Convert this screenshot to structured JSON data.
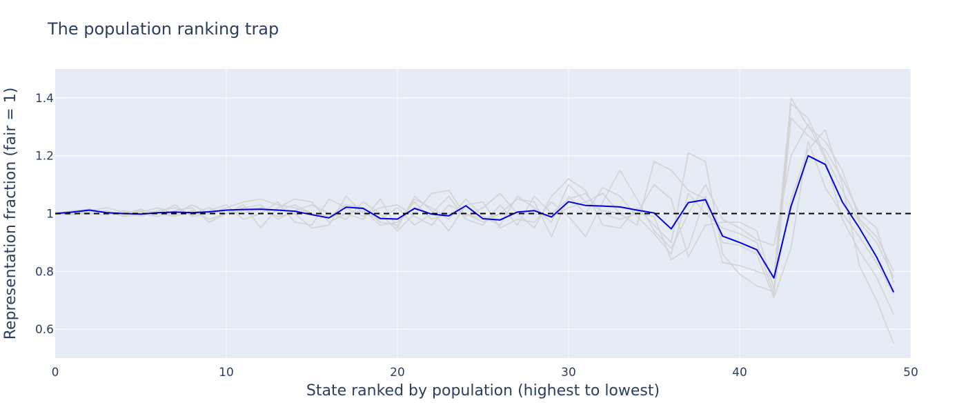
{
  "chart_data": {
    "type": "line",
    "title": "The population ranking trap",
    "xlabel": "State ranked by population (highest to lowest)",
    "ylabel": "Representation fraction (fair = 1)",
    "xlim": [
      0,
      50
    ],
    "ylim": [
      0.5,
      1.5
    ],
    "xticks": [
      0,
      10,
      20,
      30,
      40,
      50
    ],
    "yticks": [
      0.6,
      0.8,
      1,
      1.2,
      1.4
    ],
    "ytick_labels": [
      "0.6",
      "0.8",
      "1",
      "1.2",
      "1.4"
    ],
    "grid": true,
    "legend": "none",
    "reference_line": {
      "y": 1,
      "style": "dashed",
      "color": "#000000"
    },
    "colors": {
      "main": "#0000dd",
      "background": "#d3d3d3",
      "plot_bg": "#e5ecf6",
      "grid": "#ffffff",
      "text": "#2a3f5f"
    },
    "series": [
      {
        "role": "main",
        "x": [
          0,
          1,
          2,
          3,
          4,
          5,
          6,
          7,
          8,
          9,
          10,
          11,
          12,
          13,
          14,
          15,
          16,
          17,
          18,
          19,
          20,
          21,
          22,
          23,
          24,
          25,
          26,
          27,
          28,
          29,
          30,
          31,
          32,
          33,
          34,
          35,
          36,
          37,
          38,
          39,
          40,
          41,
          42,
          43,
          44,
          45,
          46,
          47,
          48,
          49
        ],
        "values": [
          1.0,
          1.005,
          1.012,
          1.003,
          1.0,
          0.998,
          1.003,
          1.005,
          1.003,
          1.006,
          1.012,
          1.014,
          1.015,
          1.012,
          1.008,
          0.996,
          0.985,
          1.022,
          1.018,
          0.983,
          0.981,
          1.018,
          0.998,
          0.992,
          1.027,
          0.982,
          0.978,
          1.005,
          1.01,
          0.988,
          1.041,
          1.028,
          1.026,
          1.023,
          1.012,
          1.002,
          0.947,
          1.038,
          1.048,
          0.922,
          0.9,
          0.875,
          0.777,
          1.025,
          1.2,
          1.17,
          1.04,
          0.95,
          0.85,
          0.728
        ]
      },
      {
        "role": "background",
        "x": [
          0,
          1,
          2,
          3,
          4,
          5,
          6,
          7,
          8,
          9,
          10,
          11,
          12,
          13,
          14,
          15,
          16,
          17,
          18,
          19,
          20,
          21,
          22,
          23,
          24,
          25,
          26,
          27,
          28,
          29,
          30,
          31,
          32,
          33,
          34,
          35,
          36,
          37,
          38,
          39,
          40,
          41,
          42,
          43,
          44,
          45,
          46,
          47,
          48,
          49
        ],
        "values": [
          1.0,
          1.01,
          1.015,
          1.0,
          0.995,
          1.005,
          1.02,
          1.0,
          1.03,
          1.0,
          1.02,
          1.04,
          1.05,
          1.03,
          1.02,
          1.0,
          0.99,
          1.03,
          1.02,
          0.97,
          0.96,
          1.05,
          1.02,
          0.98,
          1.05,
          0.99,
          0.96,
          1.06,
          1.02,
          0.97,
          1.1,
          1.04,
          1.07,
          1.0,
          0.96,
          1.18,
          1.15,
          1.08,
          1.05,
          0.83,
          0.82,
          0.8,
          0.78,
          1.4,
          1.3,
          1.25,
          1.15,
          0.98,
          0.92,
          0.8
        ]
      },
      {
        "role": "background",
        "x": [
          0,
          1,
          2,
          3,
          4,
          5,
          6,
          7,
          8,
          9,
          10,
          11,
          12,
          13,
          14,
          15,
          16,
          17,
          18,
          19,
          20,
          21,
          22,
          23,
          24,
          25,
          26,
          27,
          28,
          29,
          30,
          31,
          32,
          33,
          34,
          35,
          36,
          37,
          38,
          39,
          40,
          41,
          42,
          43,
          44,
          45,
          46,
          47,
          48,
          49
        ],
        "values": [
          0.998,
          0.995,
          1.005,
          1.01,
          0.99,
          0.995,
          1.0,
          0.99,
          1.01,
          0.98,
          1.0,
          1.02,
          1.03,
          0.98,
          1.01,
          1.03,
          1.0,
          0.98,
          1.04,
          1.0,
          0.94,
          1.0,
          1.07,
          1.08,
          0.99,
          1.02,
          1.07,
          1.0,
          0.95,
          1.06,
          1.12,
          1.08,
          0.96,
          0.95,
          1.02,
          0.96,
          0.9,
          1.21,
          1.18,
          0.86,
          0.79,
          0.75,
          0.73,
          1.38,
          1.33,
          1.2,
          1.08,
          0.97,
          0.9,
          0.78
        ]
      },
      {
        "role": "background",
        "x": [
          0,
          1,
          2,
          3,
          4,
          5,
          6,
          7,
          8,
          9,
          10,
          11,
          12,
          13,
          14,
          15,
          16,
          17,
          18,
          19,
          20,
          21,
          22,
          23,
          24,
          25,
          26,
          27,
          28,
          29,
          30,
          31,
          32,
          33,
          34,
          35,
          36,
          37,
          38,
          39,
          40,
          41,
          42,
          43,
          44,
          45,
          46,
          47,
          48,
          49
        ],
        "values": [
          1.005,
          1.0,
          1.01,
          1.02,
          1.005,
          0.99,
          1.01,
          1.02,
          0.995,
          1.01,
          1.03,
          0.98,
          1.0,
          1.04,
          0.97,
          0.96,
          1.05,
          1.02,
          0.99,
          1.02,
          1.03,
          0.99,
          0.96,
          1.03,
          1.0,
          0.97,
          1.0,
          1.05,
          1.04,
          0.92,
          1.06,
          1.0,
          1.09,
          1.06,
          0.99,
          0.93,
          0.86,
          1.07,
          1.0,
          0.95,
          0.93,
          0.9,
          0.72,
          1.33,
          1.27,
          1.22,
          1.12,
          1.0,
          0.95,
          0.76
        ]
      },
      {
        "role": "background",
        "x": [
          0,
          1,
          2,
          3,
          4,
          5,
          6,
          7,
          8,
          9,
          10,
          11,
          12,
          13,
          14,
          15,
          16,
          17,
          18,
          19,
          20,
          21,
          22,
          23,
          24,
          25,
          26,
          27,
          28,
          29,
          30,
          31,
          32,
          33,
          34,
          35,
          36,
          37,
          38,
          39,
          40,
          41,
          42,
          43,
          44,
          45,
          46,
          47,
          48,
          49
        ],
        "values": [
          0.995,
          1.005,
          1.0,
          0.995,
          1.01,
          1.0,
          0.99,
          1.01,
          1.02,
          0.97,
          1.0,
          1.03,
          0.95,
          1.02,
          1.05,
          1.04,
          0.97,
          1.0,
          0.98,
          1.05,
          0.95,
          1.06,
          1.01,
          0.94,
          1.03,
          1.04,
          0.95,
          0.98,
          0.97,
          1.04,
          0.99,
          0.92,
          1.04,
          1.15,
          1.05,
          0.94,
          0.88,
          1.0,
          1.1,
          0.98,
          0.95,
          0.91,
          0.89,
          1.2,
          1.31,
          1.19,
          0.98,
          0.87,
          0.78,
          0.65
        ]
      },
      {
        "role": "background",
        "x": [
          0,
          1,
          2,
          3,
          4,
          5,
          6,
          7,
          8,
          9,
          10,
          11,
          12,
          13,
          14,
          15,
          16,
          17,
          18,
          19,
          20,
          21,
          22,
          23,
          24,
          25,
          26,
          27,
          28,
          29,
          30,
          31,
          32,
          33,
          34,
          35,
          36,
          37,
          38,
          39,
          40,
          41,
          42,
          43,
          44,
          45,
          46,
          47,
          48,
          49
        ],
        "values": [
          1.0,
          0.995,
          1.01,
          1.005,
          1.0,
          1.015,
          1.0,
          1.03,
          0.99,
          1.0,
          1.01,
          1.0,
          1.02,
          0.99,
          1.0,
          0.95,
          0.96,
          1.06,
          1.0,
          0.98,
          1.02,
          0.96,
          1.0,
          1.06,
          0.98,
          0.96,
          1.03,
          0.96,
          1.06,
          1.0,
          1.05,
          1.07,
          1.0,
          0.98,
          1.0,
          1.1,
          1.05,
          0.85,
          0.96,
          0.97,
          0.97,
          0.94,
          0.74,
          1.05,
          1.22,
          1.29,
          1.1,
          0.82,
          0.7,
          0.55
        ]
      },
      {
        "role": "background",
        "x": [
          0,
          1,
          2,
          3,
          4,
          5,
          6,
          7,
          8,
          9,
          10,
          11,
          12,
          13,
          14,
          15,
          16,
          17,
          18,
          19,
          20,
          21,
          22,
          23,
          24,
          25,
          26,
          27,
          28,
          29,
          30,
          31,
          32,
          33,
          34,
          35,
          36,
          37,
          38,
          39,
          40,
          41,
          42,
          43,
          44,
          45,
          46,
          47,
          48,
          49
        ],
        "values": [
          1.002,
          1.0,
          0.998,
          1.005,
          1.0,
          1.01,
          1.005,
          0.995,
          1.0,
          1.02,
          1.0,
          1.01,
          1.02,
          1.01,
          1.03,
          1.0,
          0.99,
          1.0,
          1.01,
          0.96,
          0.97,
          1.04,
          0.98,
          1.0,
          1.0,
          0.98,
          1.0,
          1.0,
          1.0,
          0.99,
          1.02,
          1.04,
          1.01,
          1.0,
          1.0,
          0.99,
          0.84,
          0.88,
          1.06,
          0.9,
          0.89,
          0.86,
          0.71,
          0.88,
          1.25,
          1.09,
          1.0,
          0.92,
          0.83,
          0.72
        ]
      }
    ]
  }
}
